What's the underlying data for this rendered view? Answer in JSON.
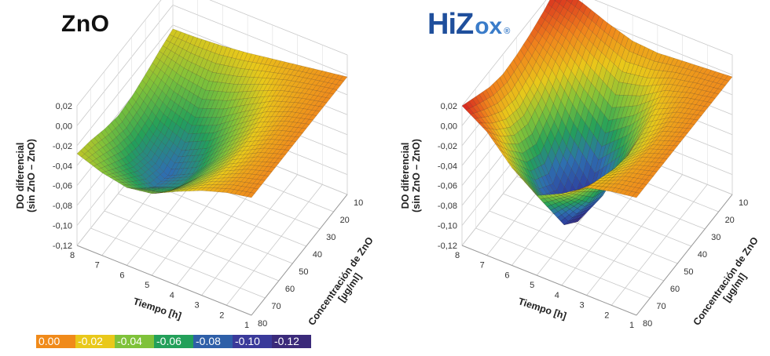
{
  "chart_data": [
    {
      "type": "surface",
      "title": "ZnO",
      "zlabel": "DO diferencial (sin ZnO – ZnO)",
      "xlabel": "Tiempo [h]",
      "ylabel": "Concentración de ZnO [µg/ml]",
      "x_ticks": [
        "1",
        "2",
        "3",
        "4",
        "5",
        "6",
        "7",
        "8"
      ],
      "y_ticks": [
        "10",
        "20",
        "30",
        "40",
        "50",
        "60",
        "70",
        "80"
      ],
      "z_ticks": [
        "0,02",
        "0,00",
        "-0,02",
        "-0,04",
        "-0,06",
        "-0,08",
        "-0,10",
        "-0,12"
      ],
      "xlim": [
        1,
        8
      ],
      "ylim": [
        10,
        80
      ],
      "zlim": [
        -0.12,
        0.02
      ],
      "x": [
        1,
        2,
        3,
        4,
        5,
        6,
        7,
        8
      ],
      "y": [
        10,
        20,
        30,
        40,
        50,
        60,
        70,
        80
      ],
      "z": [
        [
          -0.002,
          -0.006,
          -0.01,
          -0.014,
          -0.018,
          -0.021,
          -0.023,
          -0.024
        ],
        [
          -0.002,
          -0.007,
          -0.013,
          -0.022,
          -0.032,
          -0.039,
          -0.036,
          -0.029
        ],
        [
          -0.002,
          -0.008,
          -0.017,
          -0.032,
          -0.048,
          -0.058,
          -0.05,
          -0.035
        ],
        [
          -0.002,
          -0.009,
          -0.021,
          -0.04,
          -0.062,
          -0.074,
          -0.062,
          -0.04
        ],
        [
          -0.002,
          -0.01,
          -0.023,
          -0.045,
          -0.07,
          -0.082,
          -0.068,
          -0.042
        ],
        [
          -0.002,
          -0.01,
          -0.023,
          -0.043,
          -0.066,
          -0.076,
          -0.062,
          -0.038
        ],
        [
          -0.002,
          -0.009,
          -0.02,
          -0.036,
          -0.054,
          -0.06,
          -0.05,
          -0.032
        ],
        [
          -0.002,
          -0.007,
          -0.015,
          -0.026,
          -0.038,
          -0.042,
          -0.037,
          -0.028
        ]
      ]
    },
    {
      "type": "surface",
      "title": "HiZox®",
      "zlabel": "DO diferencial (sin ZnO – ZnO)",
      "xlabel": "Tiempo [h]",
      "ylabel": "Concentración de ZnO [µg/ml]",
      "x_ticks": [
        "1",
        "2",
        "3",
        "4",
        "5",
        "6",
        "7",
        "8"
      ],
      "y_ticks": [
        "10",
        "20",
        "30",
        "40",
        "50",
        "60",
        "70",
        "80"
      ],
      "z_ticks": [
        "0,02",
        "0,00",
        "-0,02",
        "-0,04",
        "-0,06",
        "-0,08",
        "-0,10",
        "-0,12"
      ],
      "xlim": [
        1,
        8
      ],
      "ylim": [
        10,
        80
      ],
      "zlim": [
        -0.12,
        0.02
      ],
      "x": [
        1,
        2,
        3,
        4,
        5,
        6,
        7,
        8
      ],
      "y": [
        10,
        20,
        30,
        40,
        50,
        60,
        70,
        80
      ],
      "z": [
        [
          -0.002,
          -0.004,
          -0.006,
          -0.008,
          -0.006,
          0.002,
          0.012,
          0.02
        ],
        [
          -0.002,
          -0.006,
          -0.012,
          -0.024,
          -0.03,
          -0.015,
          0.002,
          0.012
        ],
        [
          -0.002,
          -0.008,
          -0.02,
          -0.046,
          -0.064,
          -0.04,
          -0.012,
          0.006
        ],
        [
          -0.002,
          -0.01,
          -0.028,
          -0.07,
          -0.1,
          -0.07,
          -0.03,
          0.002
        ],
        [
          -0.002,
          -0.011,
          -0.032,
          -0.082,
          -0.118,
          -0.09,
          -0.04,
          0.0
        ],
        [
          -0.002,
          -0.01,
          -0.028,
          -0.072,
          -0.104,
          -0.078,
          -0.034,
          0.004
        ],
        [
          -0.002,
          -0.008,
          -0.02,
          -0.05,
          -0.072,
          -0.05,
          -0.018,
          0.012
        ],
        [
          -0.002,
          -0.006,
          -0.012,
          -0.028,
          -0.04,
          -0.022,
          0.004,
          0.02
        ]
      ]
    }
  ],
  "titles": {
    "left": "ZnO",
    "right_logo_main": "HiZ",
    "right_logo_ox": "ox",
    "right_logo_reg": "®"
  },
  "colorscale": {
    "labels": [
      "0.00",
      "-0.02",
      "-0.04",
      "-0.06",
      "-0.08",
      "-0.10",
      "-0.12"
    ],
    "colors": [
      "#f08a1a",
      "#e9c81a",
      "#7fc23a",
      "#23a05a",
      "#2e5fa8",
      "#3a3a9a",
      "#3b2a7a"
    ]
  }
}
